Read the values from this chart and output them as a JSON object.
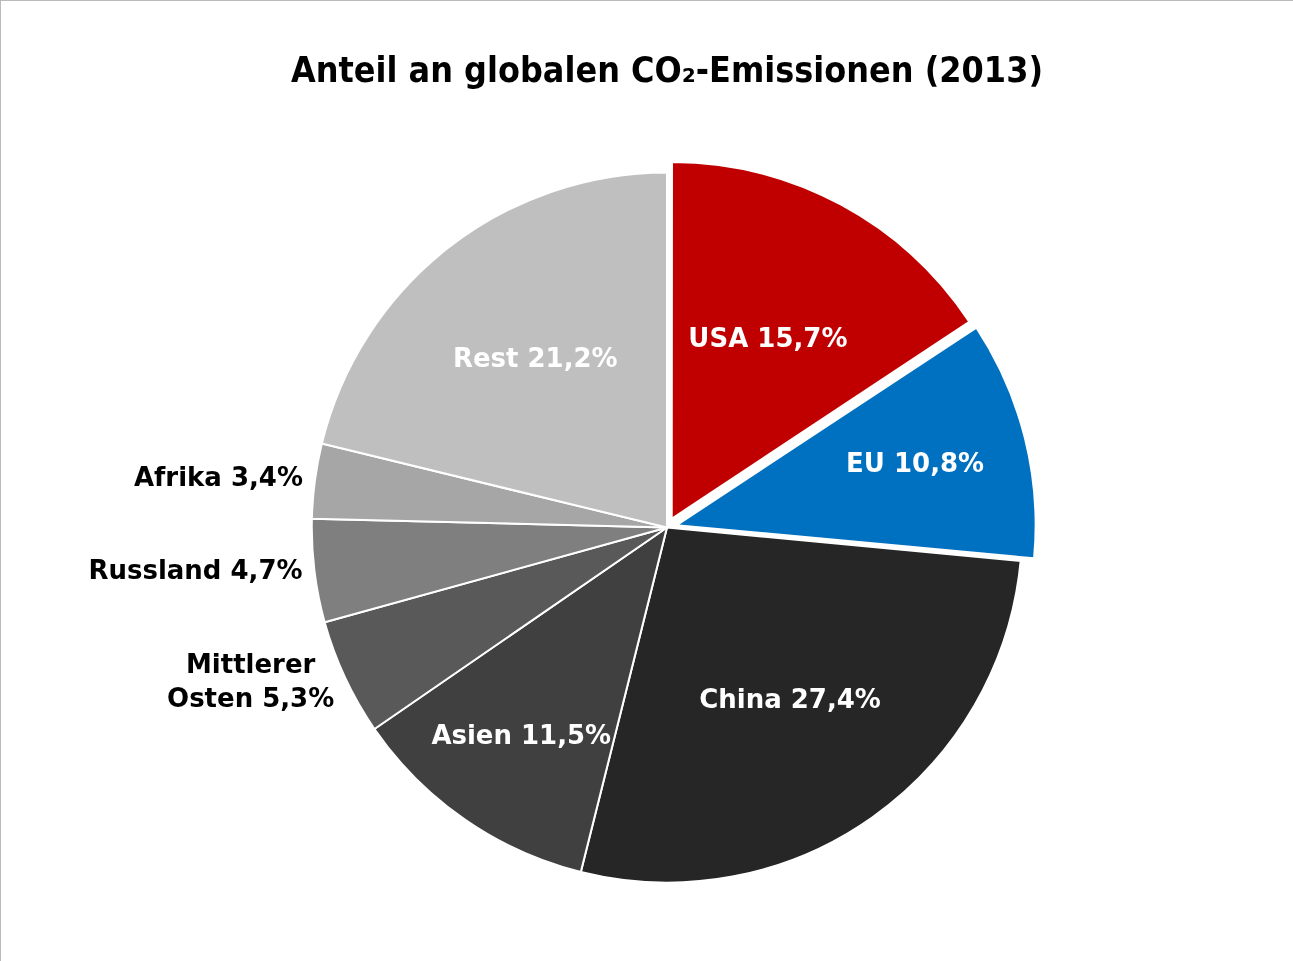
{
  "chart_data": {
    "type": "pie",
    "title": "Anteil an globalen CO₂-Emissionen (2013)",
    "categories": [
      "USA",
      "EU",
      "China",
      "Asien",
      "Mittlerer Osten",
      "Russland",
      "Afrika",
      "Rest"
    ],
    "values": [
      15.7,
      10.8,
      27.4,
      11.5,
      5.3,
      4.7,
      3.4,
      21.2
    ],
    "value_labels": [
      "15,7%",
      "10,8%",
      "27,4%",
      "11,5%",
      "5,3%",
      "4,7%",
      "3,4%",
      "21,2%"
    ],
    "colors": [
      "#c00000",
      "#0070c0",
      "#262626",
      "#404040",
      "#595959",
      "#7f7f7f",
      "#a6a6a6",
      "#bfbfbf"
    ],
    "legend": false
  }
}
